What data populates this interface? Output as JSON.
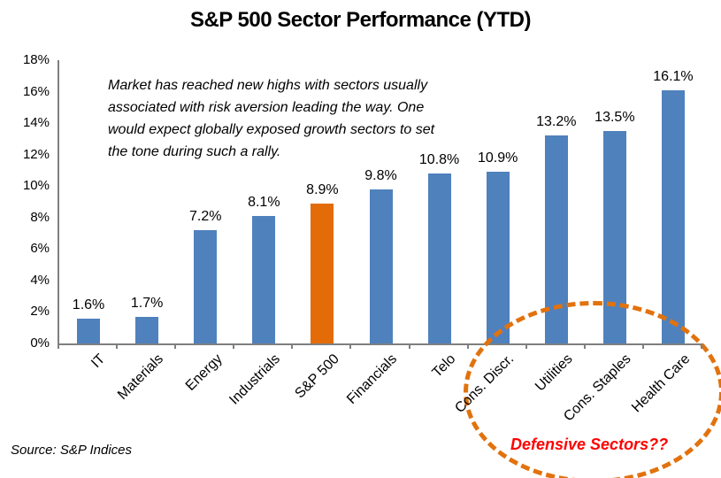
{
  "title": "S&P 500 Sector Performance (YTD)",
  "annotation": "Market has reached new highs with sectors usually\nassociated with risk aversion leading the way. One\nwould expect globally exposed growth sectors to set\nthe tone during such a rally.",
  "defensive_label": "Defensive Sectors??",
  "source_note": "Source: S&P Indices",
  "colors": {
    "bar": "#4F81BD",
    "highlight_bar": "#E36C09",
    "ellipse": "#E2720D",
    "defensive_text": "#FF0000",
    "axis": "#7F7F7F",
    "text": "#000000"
  },
  "chart_data": {
    "type": "bar",
    "title": "S&P 500 Sector Performance (YTD)",
    "categories": [
      "IT",
      "Materials",
      "Energy",
      "Industrials",
      "S&P 500",
      "Financials",
      "Telo",
      "Cons. Discr.",
      "Utilities",
      "Cons. Staples",
      "Health Care"
    ],
    "values": [
      1.6,
      1.7,
      7.2,
      8.1,
      8.9,
      9.8,
      10.8,
      10.9,
      13.2,
      13.5,
      16.1
    ],
    "value_labels": [
      "1.6%",
      "1.7%",
      "7.2%",
      "8.1%",
      "8.9%",
      "9.8%",
      "10.8%",
      "10.9%",
      "13.2%",
      "13.5%",
      "16.1%"
    ],
    "highlight_index": 4,
    "xlabel": "",
    "ylabel": "",
    "ylim": [
      0,
      18
    ],
    "ytick_step": 2,
    "ytick_labels": [
      "0%",
      "2%",
      "4%",
      "6%",
      "8%",
      "10%",
      "12%",
      "14%",
      "16%",
      "18%"
    ],
    "grid": false,
    "legend": "none",
    "annotations": [
      "Market has reached new highs with sectors usually associated with risk aversion leading the way. One would expect globally exposed growth sectors to set the tone during such a rally.",
      "Defensive Sectors??"
    ]
  }
}
